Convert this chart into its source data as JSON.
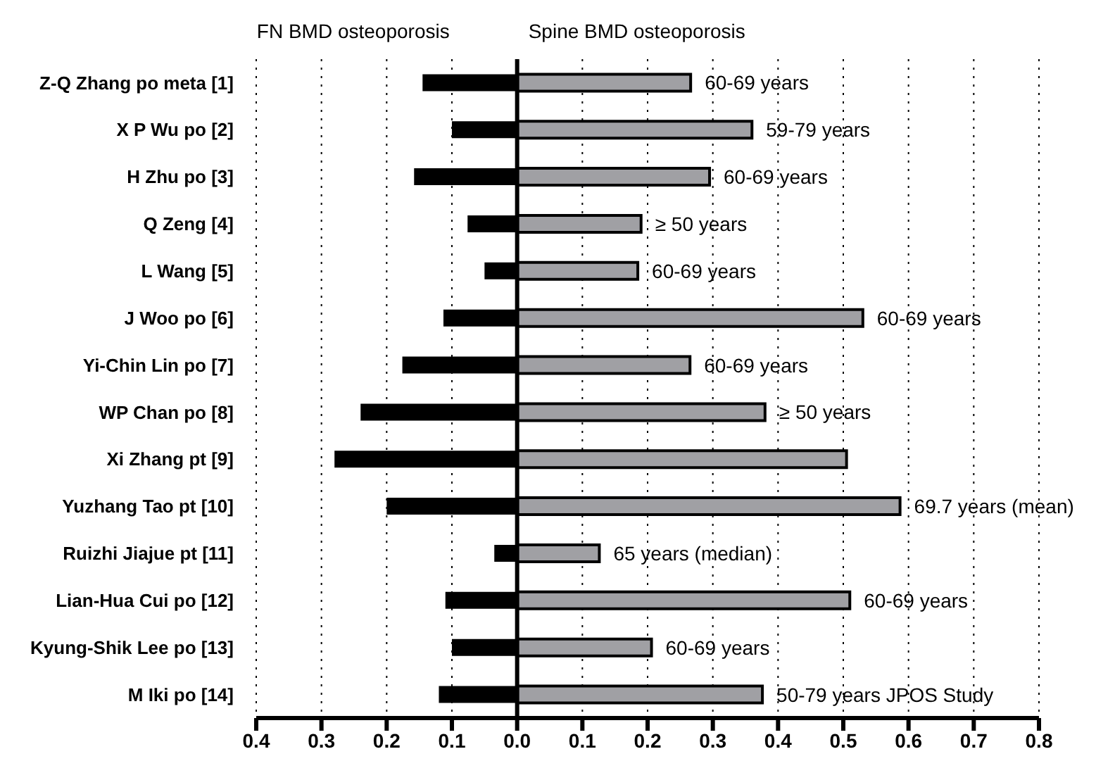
{
  "chart_data": {
    "type": "bar",
    "orientation": "horizontal",
    "stacked": true,
    "categories": [
      "Z-Q Zhang po meta [1]",
      "X P Wu po [2]",
      "H Zhu po [3]",
      "Q Zeng [4]",
      "L Wang [5]",
      "J Woo po [6]",
      "Yi-Chin Lin po [7]",
      "WP Chan po [8]",
      "Xi Zhang pt [9]",
      "Yuzhang Tao pt [10]",
      "Ruizhi Jiajue pt [11]",
      "Lian-Hua Cui po [12]",
      "Kyung-Shik Lee po [13]",
      "M Iki po [14]"
    ],
    "series": [
      {
        "name": "FN BMD osteoporosis",
        "color": "#000000",
        "values": [
          -0.145,
          -0.1,
          -0.158,
          -0.076,
          -0.05,
          -0.113,
          -0.176,
          -0.24,
          -0.28,
          -0.2,
          -0.035,
          -0.11,
          -0.1,
          -0.12
        ]
      },
      {
        "name": "Spine BMD osteoporosis",
        "color": "#a0a0a4",
        "values": [
          0.266,
          0.36,
          0.295,
          0.19,
          0.185,
          0.53,
          0.265,
          0.38,
          0.505,
          0.587,
          0.126,
          0.51,
          0.206,
          0.376
        ]
      }
    ],
    "xlim": [
      -0.4,
      0.8
    ],
    "xticks": [
      {
        "value": -0.4,
        "label": "0.4"
      },
      {
        "value": -0.3,
        "label": "0.3"
      },
      {
        "value": -0.2,
        "label": "0.2"
      },
      {
        "value": -0.1,
        "label": "0.1"
      },
      {
        "value": 0,
        "label": "0.0"
      },
      0.1,
      0.2,
      0.3,
      0.4,
      0.5,
      0.6,
      0.7,
      0.8
    ],
    "grid": "x",
    "legend": false,
    "ref_lines": [
      {
        "axis": "x",
        "value": 0,
        "color": "#000000"
      }
    ],
    "annotations": [
      {
        "text": "60-69 years",
        "x": 0.266,
        "y": "Z-Q Zhang po meta [1]"
      },
      {
        "text": "59-79 years",
        "x": 0.36,
        "y": "X P Wu po [2]"
      },
      {
        "text": "60-69 years",
        "x": 0.295,
        "y": "H Zhu po [3]"
      },
      {
        "text": "≥ 50 years",
        "x": 0.19,
        "y": "Q Zeng [4]"
      },
      {
        "text": "60-69 years",
        "x": 0.185,
        "y": "L Wang [5]"
      },
      {
        "text": "60-69 years",
        "x": 0.53,
        "y": "J Woo po [6]"
      },
      {
        "text": "60-69 years",
        "x": 0.265,
        "y": "Yi-Chin Lin po [7]"
      },
      {
        "text": "≥ 50 years",
        "x": 0.38,
        "y": "WP Chan po [8]"
      },
      {
        "text": "69.7 years (mean)",
        "x": 0.587,
        "y": "Yuzhang Tao pt [10]"
      },
      {
        "text": "65 years (median)",
        "x": 0.126,
        "y": "Ruizhi Jiajue pt [11]"
      },
      {
        "text": "60-69 years",
        "x": 0.51,
        "y": "Lian-Hua Cui po [12]"
      },
      {
        "text": "60-69 years",
        "x": 0.206,
        "y": "Kyung-Shik Lee po [13]"
      },
      {
        "text": "50-79 years  JPOS Study",
        "x": 0.376,
        "y": "M Iki po [14]"
      }
    ]
  }
}
